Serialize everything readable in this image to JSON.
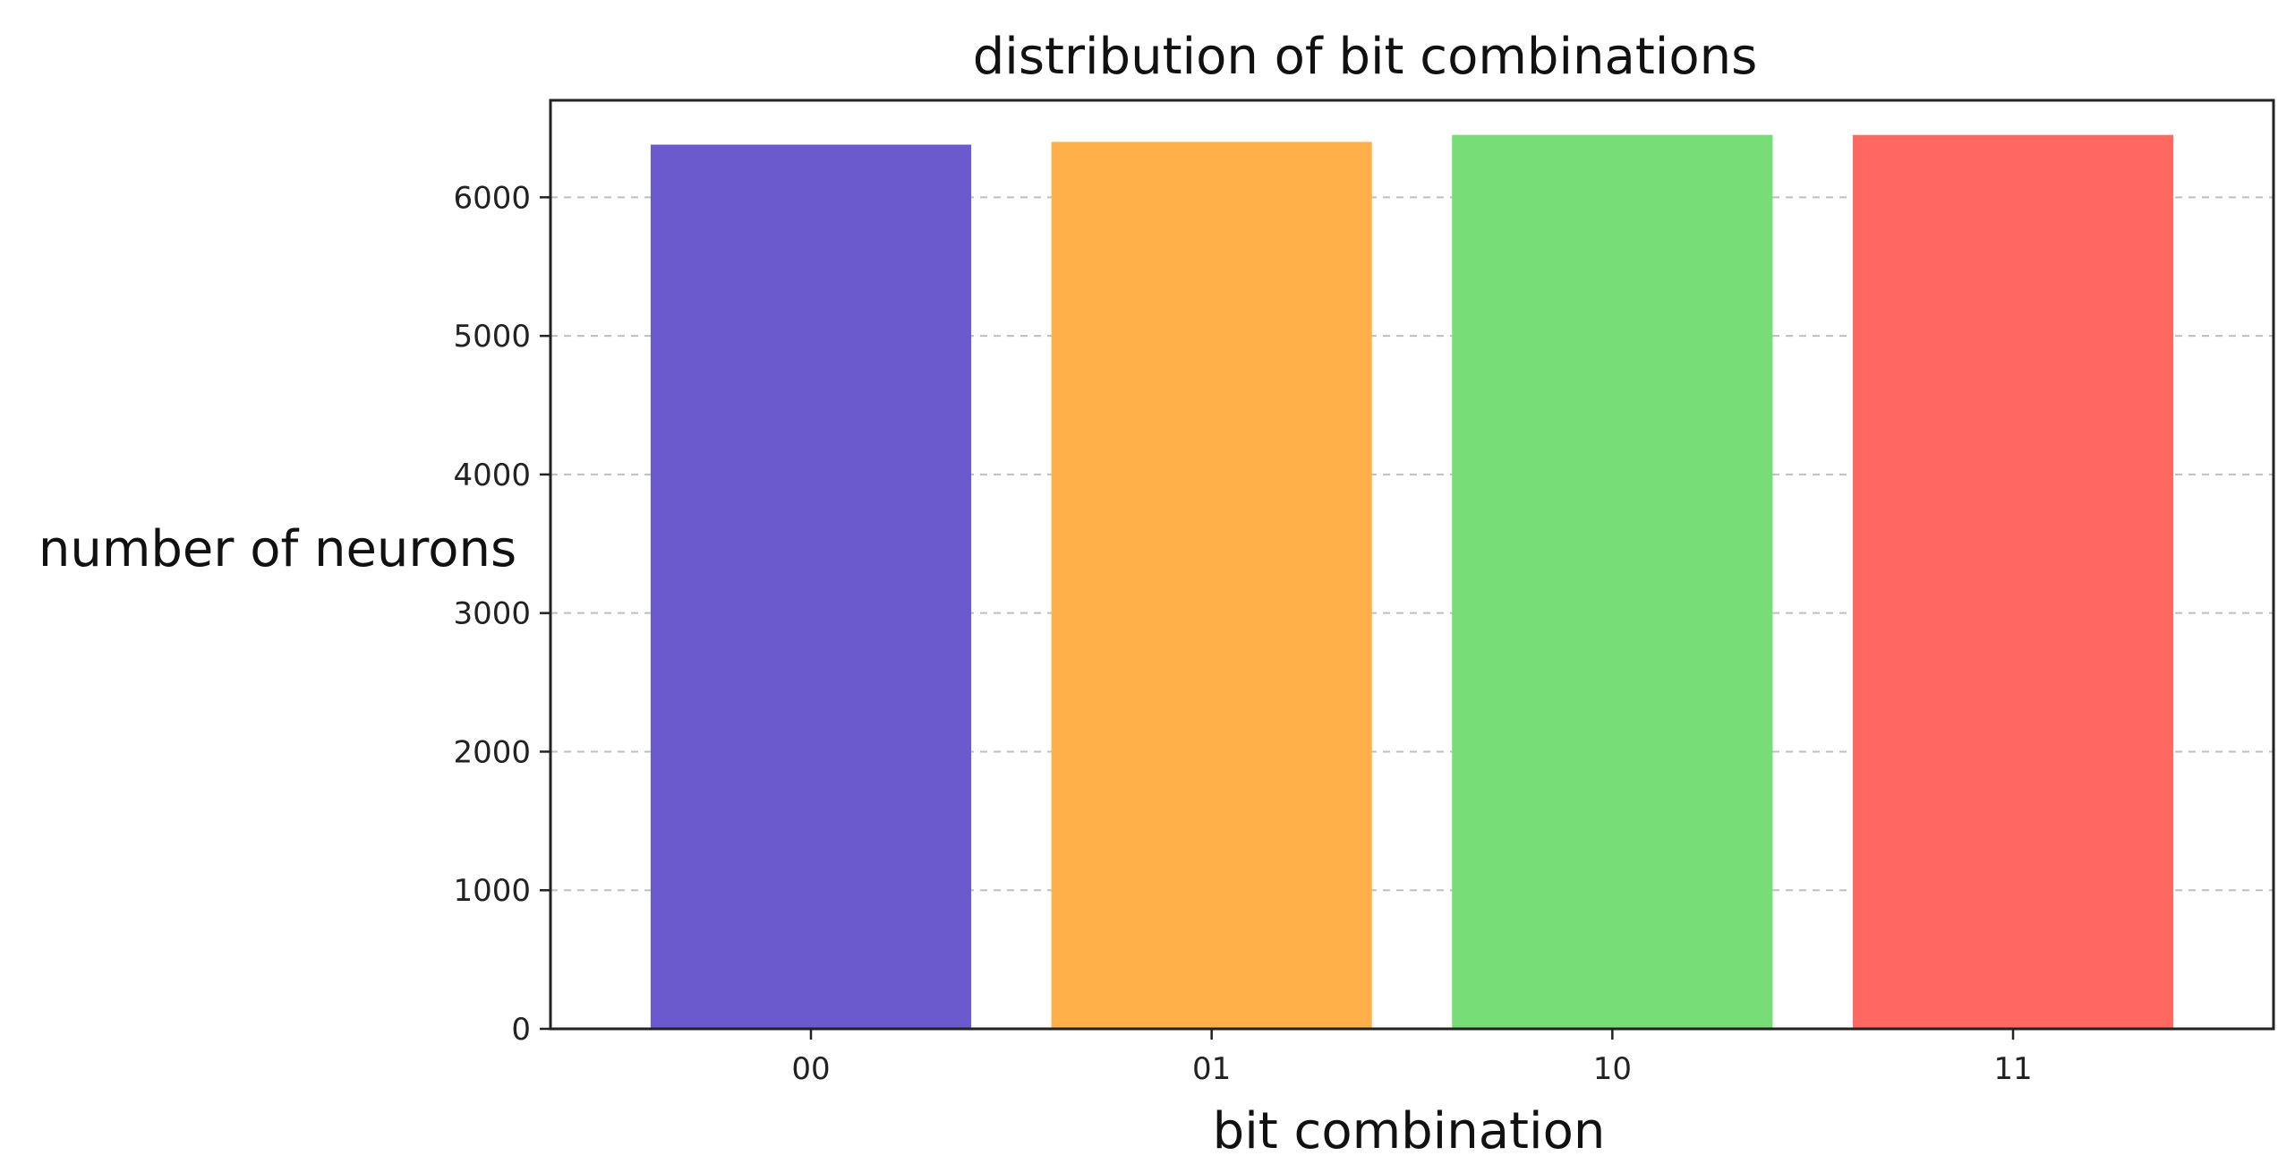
{
  "chart_data": {
    "type": "bar",
    "title": "distribution of bit combinations",
    "xlabel": "bit combination",
    "ylabel": "number of neurons",
    "categories": [
      "00",
      "01",
      "10",
      "11"
    ],
    "values": [
      6380,
      6400,
      6450,
      6450
    ],
    "colors": [
      "#6a5acd",
      "#ffb048",
      "#77dd77",
      "#ff6961"
    ],
    "ylim": [
      0,
      6700
    ],
    "yticks": [
      0,
      1000,
      2000,
      3000,
      4000,
      5000,
      6000
    ],
    "ytick_labels": [
      "0",
      "1000",
      "2000",
      "3000",
      "4000",
      "5000",
      "6000"
    ],
    "grid": "y-dashed",
    "legend": "none"
  }
}
